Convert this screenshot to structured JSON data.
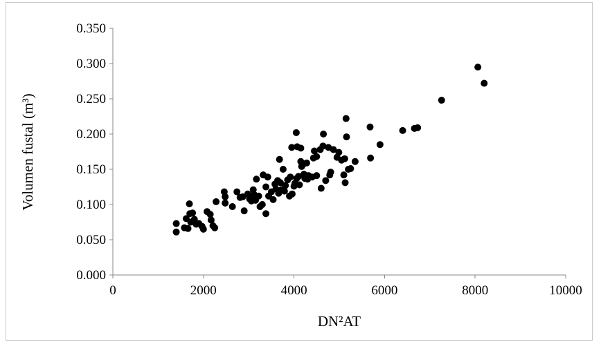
{
  "chart_data": {
    "type": "scatter",
    "title": "",
    "xlabel": "DN²AT",
    "ylabel": "Volumen fustal (m³)",
    "xlim": [
      0,
      10000
    ],
    "ylim": [
      0,
      0.35
    ],
    "x_ticks": [
      "0",
      "2000",
      "4000",
      "6000",
      "8000",
      "10000"
    ],
    "y_ticks": [
      "0.000",
      "0.050",
      "0.100",
      "0.150",
      "0.200",
      "0.250",
      "0.300",
      "0.350"
    ],
    "grid": false,
    "legend": "none",
    "marker_color": "#000000",
    "points": [
      [
        1400,
        0.073
      ],
      [
        1400,
        0.061
      ],
      [
        1580,
        0.067
      ],
      [
        1620,
        0.08
      ],
      [
        1660,
        0.066
      ],
      [
        1690,
        0.101
      ],
      [
        1700,
        0.087
      ],
      [
        1720,
        0.075
      ],
      [
        1760,
        0.088
      ],
      [
        1800,
        0.079
      ],
      [
        1840,
        0.072
      ],
      [
        1900,
        0.073
      ],
      [
        1970,
        0.069
      ],
      [
        2000,
        0.065
      ],
      [
        2080,
        0.09
      ],
      [
        2150,
        0.086
      ],
      [
        2170,
        0.078
      ],
      [
        2210,
        0.07
      ],
      [
        2250,
        0.067
      ],
      [
        2280,
        0.104
      ],
      [
        2460,
        0.118
      ],
      [
        2480,
        0.111
      ],
      [
        2480,
        0.102
      ],
      [
        2640,
        0.097
      ],
      [
        2740,
        0.118
      ],
      [
        2810,
        0.11
      ],
      [
        2870,
        0.111
      ],
      [
        2900,
        0.091
      ],
      [
        2980,
        0.115
      ],
      [
        3020,
        0.108
      ],
      [
        3060,
        0.105
      ],
      [
        3100,
        0.121
      ],
      [
        3120,
        0.114
      ],
      [
        3150,
        0.106
      ],
      [
        3170,
        0.136
      ],
      [
        3220,
        0.112
      ],
      [
        3250,
        0.097
      ],
      [
        3300,
        0.1
      ],
      [
        3320,
        0.142
      ],
      [
        3380,
        0.087
      ],
      [
        3380,
        0.125
      ],
      [
        3420,
        0.139
      ],
      [
        3440,
        0.112
      ],
      [
        3500,
        0.118
      ],
      [
        3540,
        0.107
      ],
      [
        3580,
        0.129
      ],
      [
        3600,
        0.122
      ],
      [
        3640,
        0.134
      ],
      [
        3660,
        0.116
      ],
      [
        3680,
        0.164
      ],
      [
        3700,
        0.131
      ],
      [
        3720,
        0.121
      ],
      [
        3760,
        0.15
      ],
      [
        3790,
        0.119
      ],
      [
        3810,
        0.127
      ],
      [
        3860,
        0.135
      ],
      [
        3900,
        0.112
      ],
      [
        3920,
        0.139
      ],
      [
        3950,
        0.181
      ],
      [
        3960,
        0.115
      ],
      [
        4000,
        0.126
      ],
      [
        4020,
        0.13
      ],
      [
        4050,
        0.202
      ],
      [
        4060,
        0.137
      ],
      [
        4070,
        0.182
      ],
      [
        4100,
        0.14
      ],
      [
        4120,
        0.128
      ],
      [
        4150,
        0.161
      ],
      [
        4150,
        0.18
      ],
      [
        4170,
        0.154
      ],
      [
        4200,
        0.157
      ],
      [
        4220,
        0.143
      ],
      [
        4240,
        0.137
      ],
      [
        4280,
        0.159
      ],
      [
        4300,
        0.136
      ],
      [
        4320,
        0.141
      ],
      [
        4400,
        0.139
      ],
      [
        4430,
        0.166
      ],
      [
        4450,
        0.176
      ],
      [
        4500,
        0.168
      ],
      [
        4500,
        0.141
      ],
      [
        4580,
        0.178
      ],
      [
        4600,
        0.123
      ],
      [
        4640,
        0.183
      ],
      [
        4650,
        0.2
      ],
      [
        4700,
        0.134
      ],
      [
        4760,
        0.181
      ],
      [
        4790,
        0.142
      ],
      [
        4810,
        0.146
      ],
      [
        4870,
        0.178
      ],
      [
        4950,
        0.167
      ],
      [
        4990,
        0.174
      ],
      [
        5050,
        0.163
      ],
      [
        5100,
        0.142
      ],
      [
        5120,
        0.165
      ],
      [
        5130,
        0.131
      ],
      [
        5150,
        0.222
      ],
      [
        5160,
        0.196
      ],
      [
        5200,
        0.15
      ],
      [
        5250,
        0.151
      ],
      [
        5350,
        0.161
      ],
      [
        5680,
        0.21
      ],
      [
        5690,
        0.166
      ],
      [
        5900,
        0.185
      ],
      [
        6400,
        0.205
      ],
      [
        6660,
        0.208
      ],
      [
        6730,
        0.209
      ],
      [
        7260,
        0.248
      ],
      [
        8060,
        0.295
      ],
      [
        8200,
        0.272
      ]
    ]
  }
}
